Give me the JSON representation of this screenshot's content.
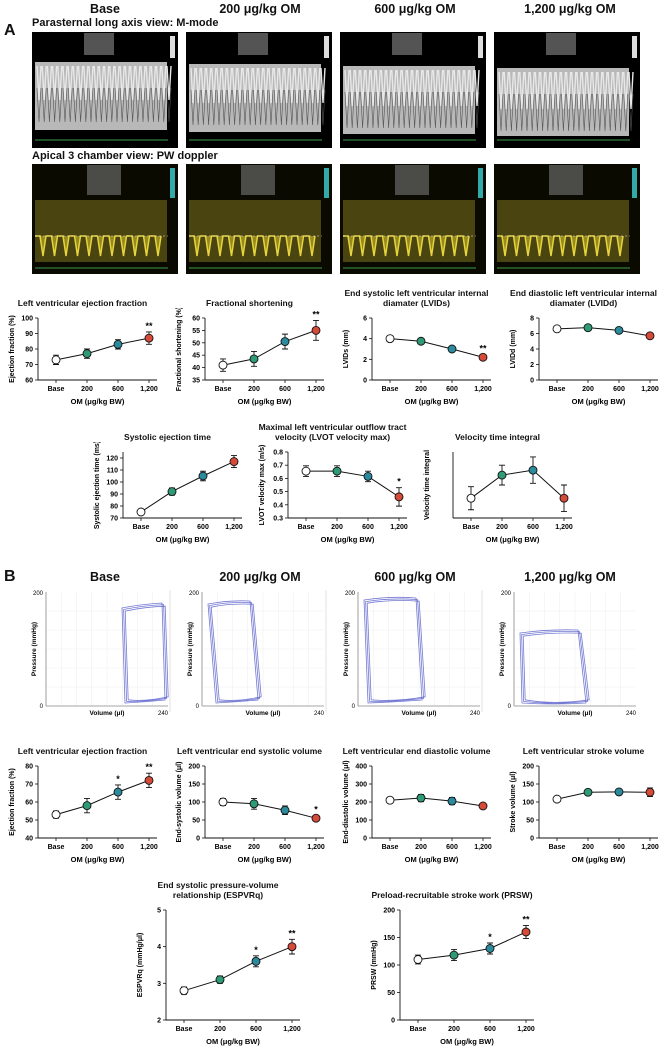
{
  "panels": {
    "a": "A",
    "b": "B"
  },
  "columns": [
    "Base",
    "200 μg/kg OM",
    "600 μg/kg OM",
    "1,200 μg/kg OM"
  ],
  "echo": {
    "row1": "Parasternal long axis view: M-mode",
    "row2": "Apical 3 chamber view: PW doppler"
  },
  "pv_loops": {
    "ylabel": "Pressure (mmHg)",
    "xlabel": "Volume (μl)",
    "ytop": "200",
    "origin": "0",
    "xright": "240"
  },
  "chart_data": [
    {
      "type": "dot-line",
      "title": "Left ventricular ejection fraction",
      "ylabel": "Ejection fraction (%)",
      "xlabel": "OM (μg/kg BW)",
      "categories": [
        "Base",
        "200",
        "600",
        "1,200"
      ],
      "values": [
        73,
        77,
        83,
        87
      ],
      "errors": [
        3,
        3,
        3,
        4
      ],
      "annotations": [
        null,
        null,
        null,
        "**"
      ],
      "colors": [
        "#ffffff",
        "#2e9a78",
        "#2b8b9c",
        "#d64a3a"
      ],
      "ylim": [
        60,
        100
      ],
      "yticks": [
        60,
        70,
        80,
        90,
        100
      ]
    },
    {
      "type": "dot-line",
      "title": "Fractional shortening",
      "ylabel": "Fractional shortening (%)",
      "xlabel": "OM (μg/kg BW)",
      "categories": [
        "Base",
        "200",
        "600",
        "1,200"
      ],
      "values": [
        41,
        43.5,
        50.5,
        55
      ],
      "errors": [
        2.5,
        3,
        3,
        4
      ],
      "annotations": [
        null,
        null,
        null,
        "**"
      ],
      "colors": [
        "#ffffff",
        "#2e9a78",
        "#2b8b9c",
        "#d64a3a"
      ],
      "ylim": [
        35,
        60
      ],
      "yticks": [
        35,
        40,
        45,
        50,
        55,
        60
      ]
    },
    {
      "type": "dot-line",
      "title": "End systolic left ventricular internal diamater (LVIDs)",
      "ylabel": "LVIDs (mm)",
      "xlabel": "OM (μg/kg BW)",
      "categories": [
        "Base",
        "200",
        "600",
        "1,200"
      ],
      "values": [
        4.0,
        3.75,
        3.0,
        2.2
      ],
      "errors": [
        0.25,
        0.25,
        0.25,
        0.25
      ],
      "annotations": [
        null,
        null,
        null,
        "**"
      ],
      "colors": [
        "#ffffff",
        "#2e9a78",
        "#2b8b9c",
        "#d64a3a"
      ],
      "ylim": [
        0,
        6
      ],
      "yticks": [
        0,
        2,
        4,
        6
      ]
    },
    {
      "type": "dot-line",
      "title": "End diastolic left ventricular internal diamater (LVIDd)",
      "ylabel": "LVIDd (mm)",
      "xlabel": "OM (μg/kg BW)",
      "categories": [
        "Base",
        "200",
        "600",
        "1,200"
      ],
      "values": [
        6.6,
        6.75,
        6.4,
        5.7
      ],
      "errors": [
        0.2,
        0.15,
        0.15,
        0.2
      ],
      "annotations": [
        null,
        null,
        null,
        null
      ],
      "colors": [
        "#ffffff",
        "#2e9a78",
        "#2b8b9c",
        "#d64a3a"
      ],
      "ylim": [
        0,
        8
      ],
      "yticks": [
        0,
        2,
        4,
        6,
        8
      ]
    },
    {
      "type": "dot-line",
      "title": "Systolic ejection time",
      "ylabel": "Systolic ejection time (ms)",
      "xlabel": "OM (μg/kg BW)",
      "categories": [
        "Base",
        "200",
        "600",
        "1,200"
      ],
      "values": [
        75,
        92,
        105,
        117
      ],
      "errors": [
        2,
        3,
        4,
        5
      ],
      "annotations": [
        null,
        null,
        null,
        null
      ],
      "colors": [
        "#ffffff",
        "#2e9a78",
        "#2b8b9c",
        "#d64a3a"
      ],
      "ylim": [
        70,
        125
      ],
      "yticks": [
        70,
        80,
        90,
        100,
        110,
        120
      ]
    },
    {
      "type": "dot-line",
      "title": "Maximal left ventricular outflow tract velocity (LVOT velocity max)",
      "ylabel": "LVOT velocity max (m/s)",
      "xlabel": "OM (μg/kg BW)",
      "categories": [
        "Base",
        "200",
        "600",
        "1,200"
      ],
      "values": [
        0.655,
        0.655,
        0.615,
        0.46
      ],
      "errors": [
        0.04,
        0.04,
        0.04,
        0.07
      ],
      "annotations": [
        null,
        null,
        null,
        "*"
      ],
      "colors": [
        "#ffffff",
        "#2e9a78",
        "#2b8b9c",
        "#d64a3a"
      ],
      "ylim": [
        0.3,
        0.8
      ],
      "yticks": [
        0.3,
        0.4,
        0.5,
        0.6,
        0.7,
        0.8
      ]
    },
    {
      "type": "dot-line",
      "title": "Velocity time integral",
      "ylabel": "Velocity time integral",
      "xlabel": "OM (μg/kg BW)",
      "categories": [
        "Base",
        "200",
        "600",
        "1,200"
      ],
      "values": [
        3.4,
        4.1,
        4.25,
        3.4
      ],
      "errors": [
        0.35,
        0.3,
        0.4,
        0.4
      ],
      "annotations": [
        null,
        null,
        null,
        null
      ],
      "colors": [
        "#ffffff",
        "#2e9a78",
        "#2b8b9c",
        "#d64a3a"
      ],
      "ylim": [
        2.8,
        4.8
      ]
    },
    {
      "type": "dot-line",
      "title": "Left ventricular ejection fraction",
      "ylabel": "Ejection fraction (%)",
      "xlabel": "OM (μg/kg BW)",
      "categories": [
        "Base",
        "200",
        "600",
        "1,200"
      ],
      "values": [
        53,
        58,
        65.5,
        72
      ],
      "errors": [
        2,
        4,
        4,
        4
      ],
      "annotations": [
        null,
        null,
        "*",
        "**"
      ],
      "colors": [
        "#ffffff",
        "#2e9a78",
        "#2b8b9c",
        "#d64a3a"
      ],
      "ylim": [
        40,
        80
      ],
      "yticks": [
        40,
        50,
        60,
        70,
        80
      ]
    },
    {
      "type": "dot-line",
      "title": "Left ventricular end systolic volume",
      "ylabel": "End-systolic volume (μl)",
      "xlabel": "OM (μg/kg BW)",
      "categories": [
        "Base",
        "200",
        "600",
        "1,200"
      ],
      "values": [
        100,
        95,
        77,
        55
      ],
      "errors": [
        10,
        15,
        12,
        8
      ],
      "annotations": [
        null,
        null,
        null,
        "*"
      ],
      "colors": [
        "#ffffff",
        "#2e9a78",
        "#2b8b9c",
        "#d64a3a"
      ],
      "ylim": [
        0,
        200
      ],
      "yticks": [
        0,
        50,
        100,
        150,
        200
      ]
    },
    {
      "type": "dot-line",
      "title": "Left ventricular end diastolic volume",
      "ylabel": "End-diastolic volume (μl)",
      "xlabel": "OM (μg/kg BW)",
      "categories": [
        "Base",
        "200",
        "600",
        "1,200"
      ],
      "values": [
        210,
        222,
        205,
        178
      ],
      "errors": [
        15,
        20,
        20,
        12
      ],
      "annotations": [
        null,
        null,
        null,
        null
      ],
      "colors": [
        "#ffffff",
        "#2e9a78",
        "#2b8b9c",
        "#d64a3a"
      ],
      "ylim": [
        0,
        400
      ],
      "yticks": [
        0,
        100,
        200,
        300,
        400
      ]
    },
    {
      "type": "dot-line",
      "title": "Left ventricular stroke volume",
      "ylabel": "Stroke volume (μl)",
      "xlabel": "OM (μg/kg BW)",
      "categories": [
        "Base",
        "200",
        "600",
        "1,200"
      ],
      "values": [
        108,
        127,
        128,
        127
      ],
      "errors": [
        5,
        8,
        6,
        12
      ],
      "annotations": [
        null,
        null,
        null,
        null
      ],
      "colors": [
        "#ffffff",
        "#2e9a78",
        "#2b8b9c",
        "#d64a3a"
      ],
      "ylim": [
        0,
        200
      ],
      "yticks": [
        0,
        50,
        100,
        150,
        200
      ]
    },
    {
      "type": "dot-line",
      "title": "End systolic pressure-volume relationship (ESPVRq)",
      "ylabel": "ESPVRq (mmHg/μl)",
      "xlabel": "OM (μg/kg BW)",
      "categories": [
        "Base",
        "200",
        "600",
        "1,200"
      ],
      "values": [
        2.8,
        3.1,
        3.6,
        4.0
      ],
      "errors": [
        0.1,
        0.1,
        0.15,
        0.2
      ],
      "annotations": [
        null,
        null,
        "*",
        "**"
      ],
      "colors": [
        "#ffffff",
        "#2e9a78",
        "#2b8b9c",
        "#d64a3a"
      ],
      "ylim": [
        2,
        5
      ],
      "yticks": [
        2,
        3,
        4,
        5
      ]
    },
    {
      "type": "dot-line",
      "title": "Preload-recruitable stroke work (PRSW)",
      "ylabel": "PRSW (mmHg)",
      "xlabel": "OM (μg/kg BW)",
      "categories": [
        "Base",
        "200",
        "600",
        "1,200"
      ],
      "values": [
        110,
        118,
        130,
        160
      ],
      "errors": [
        8,
        10,
        10,
        12
      ],
      "annotations": [
        null,
        null,
        "*",
        "**"
      ],
      "colors": [
        "#ffffff",
        "#2e9a78",
        "#2b8b9c",
        "#d64a3a"
      ],
      "ylim": [
        0,
        200
      ],
      "yticks": [
        0,
        50,
        100,
        150,
        200
      ]
    }
  ]
}
